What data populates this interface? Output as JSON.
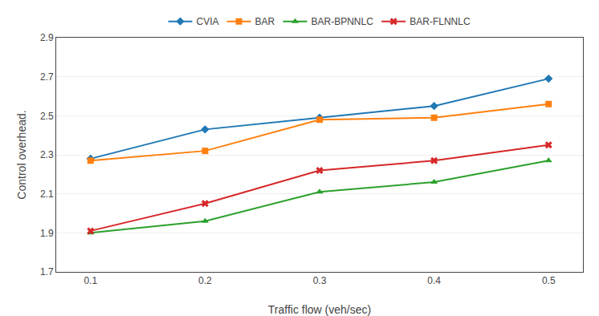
{
  "chart_data": {
    "type": "line",
    "x_label": "Traffic flow (veh/sec)",
    "y_label": "Control overhead.",
    "x": [
      0.1,
      0.2,
      0.3,
      0.4,
      0.5
    ],
    "series": [
      {
        "name": "CVIA",
        "marker": "diamond",
        "values": [
          2.28,
          2.43,
          2.49,
          2.55,
          2.69
        ]
      },
      {
        "name": "BAR",
        "marker": "square",
        "values": [
          2.27,
          2.32,
          2.48,
          2.49,
          2.56
        ]
      },
      {
        "name": "BAR-BPNNLC",
        "marker": "triangle-up",
        "values": [
          1.9,
          1.96,
          2.11,
          2.16,
          2.27
        ]
      },
      {
        "name": "BAR-FLNNLC",
        "marker": "x",
        "values": [
          1.91,
          2.05,
          2.22,
          2.27,
          2.35
        ]
      }
    ],
    "xlim": [
      0.07,
      0.53
    ],
    "xticks": [
      0.1,
      0.2,
      0.3,
      0.4,
      0.5
    ],
    "ylim": [
      1.7,
      2.9
    ],
    "yticks": [
      1.7,
      1.9,
      2.1,
      2.3,
      2.5,
      2.7,
      2.9
    ],
    "grid": "y",
    "legend": "top"
  }
}
